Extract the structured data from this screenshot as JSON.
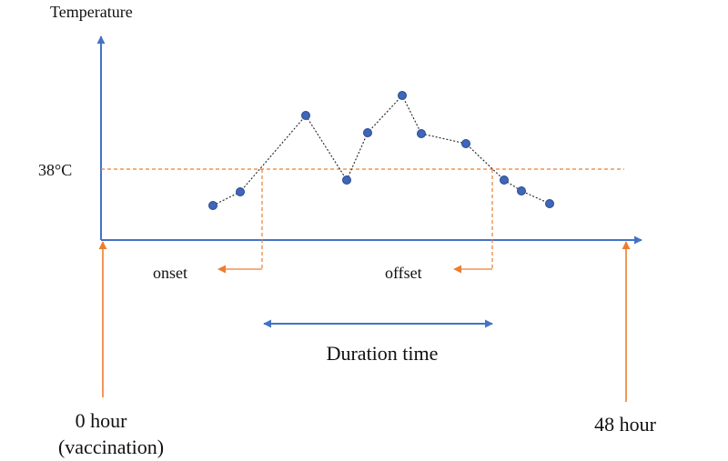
{
  "labels": {
    "y_axis": "Temperature",
    "threshold": "38°C",
    "onset": "onset",
    "offset": "offset",
    "duration": "Duration time",
    "start_line1": "0 hour",
    "start_line2": "(vaccination)",
    "end": "48 hour"
  },
  "colors": {
    "axis": "#4472c4",
    "point_fill": "#3f66b8",
    "point_stroke": "#2a4a8e",
    "threshold": "#ed7d31",
    "trend": "#222222"
  },
  "icons": {
    "onset_arrow": "arrow-left-icon",
    "offset_arrow": "arrow-left-icon",
    "start_arrow": "arrow-up-icon",
    "end_arrow": "arrow-up-icon"
  }
}
